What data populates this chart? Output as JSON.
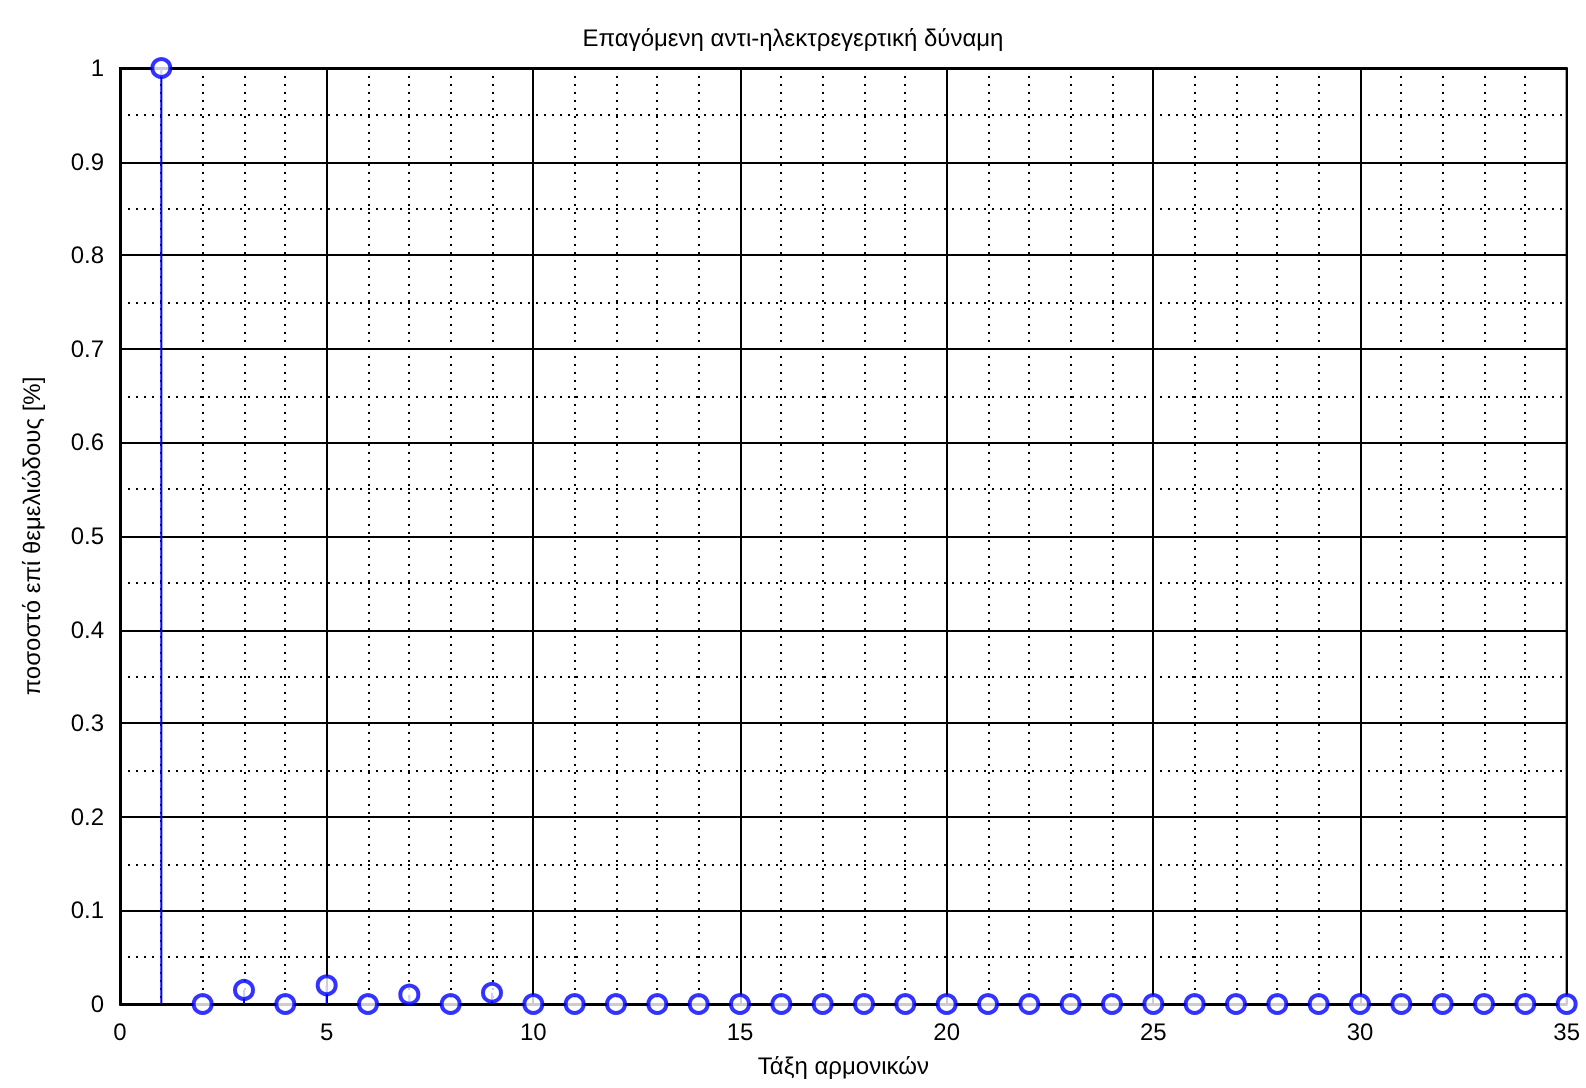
{
  "chart_data": {
    "type": "lollipop",
    "title": "Επαγόμενη αντι-ηλεκτρεγερτική δύναμη",
    "xlabel": "Τάξη αρμονικών",
    "ylabel": "ποσοστό επί θεμελιώδους [%]",
    "x": [
      1,
      2,
      3,
      4,
      5,
      6,
      7,
      8,
      9,
      10,
      11,
      12,
      13,
      14,
      15,
      16,
      17,
      18,
      19,
      20,
      21,
      22,
      23,
      24,
      25,
      26,
      27,
      28,
      29,
      30,
      31,
      32,
      33,
      34,
      35
    ],
    "values": [
      1,
      0,
      0.015,
      0,
      0.02,
      0,
      0.01,
      0,
      0.012,
      0,
      0,
      0,
      0,
      0,
      0,
      0,
      0,
      0,
      0,
      0,
      0,
      0,
      0,
      0,
      0,
      0,
      0,
      0,
      0,
      0,
      0,
      0,
      0,
      0,
      0
    ],
    "color": "#0000ff",
    "marker": "circle",
    "grid": true,
    "xlim": [
      0,
      35
    ],
    "xticks": [
      0,
      5,
      10,
      15,
      20,
      25,
      30,
      35
    ],
    "ylim": [
      0,
      1
    ],
    "yticks": [
      0,
      0.1,
      0.2,
      0.3,
      0.4,
      0.5,
      0.6,
      0.7,
      0.8,
      0.9,
      1
    ]
  }
}
